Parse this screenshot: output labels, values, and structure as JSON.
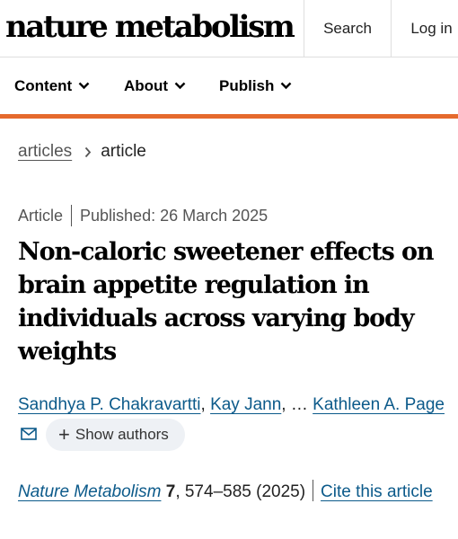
{
  "header": {
    "logo": "nature metabolism",
    "search_label": "Search",
    "login_label": "Log in"
  },
  "nav": {
    "items": [
      {
        "label": "Content"
      },
      {
        "label": "About"
      },
      {
        "label": "Publish"
      }
    ]
  },
  "colors": {
    "accent": "#e56a2d",
    "link": "#0c5a8a"
  },
  "breadcrumb": {
    "parent": "articles",
    "current": "article"
  },
  "article": {
    "type": "Article",
    "published": "Published: 26 March 2025",
    "title": "Non-caloric sweetener effects on brain appetite regulation in individuals across varying body weights",
    "authors": {
      "first": "Sandhya P. Chakravartti",
      "second": "Kay Jann",
      "ellipsis": "…",
      "last": "Kathleen A. Page",
      "show_authors": "Show authors"
    },
    "citation": {
      "journal": "Nature Metabolism",
      "volume": "7",
      "pages_year": ", 574–585 (2025)",
      "cite_label": "Cite this article"
    }
  }
}
